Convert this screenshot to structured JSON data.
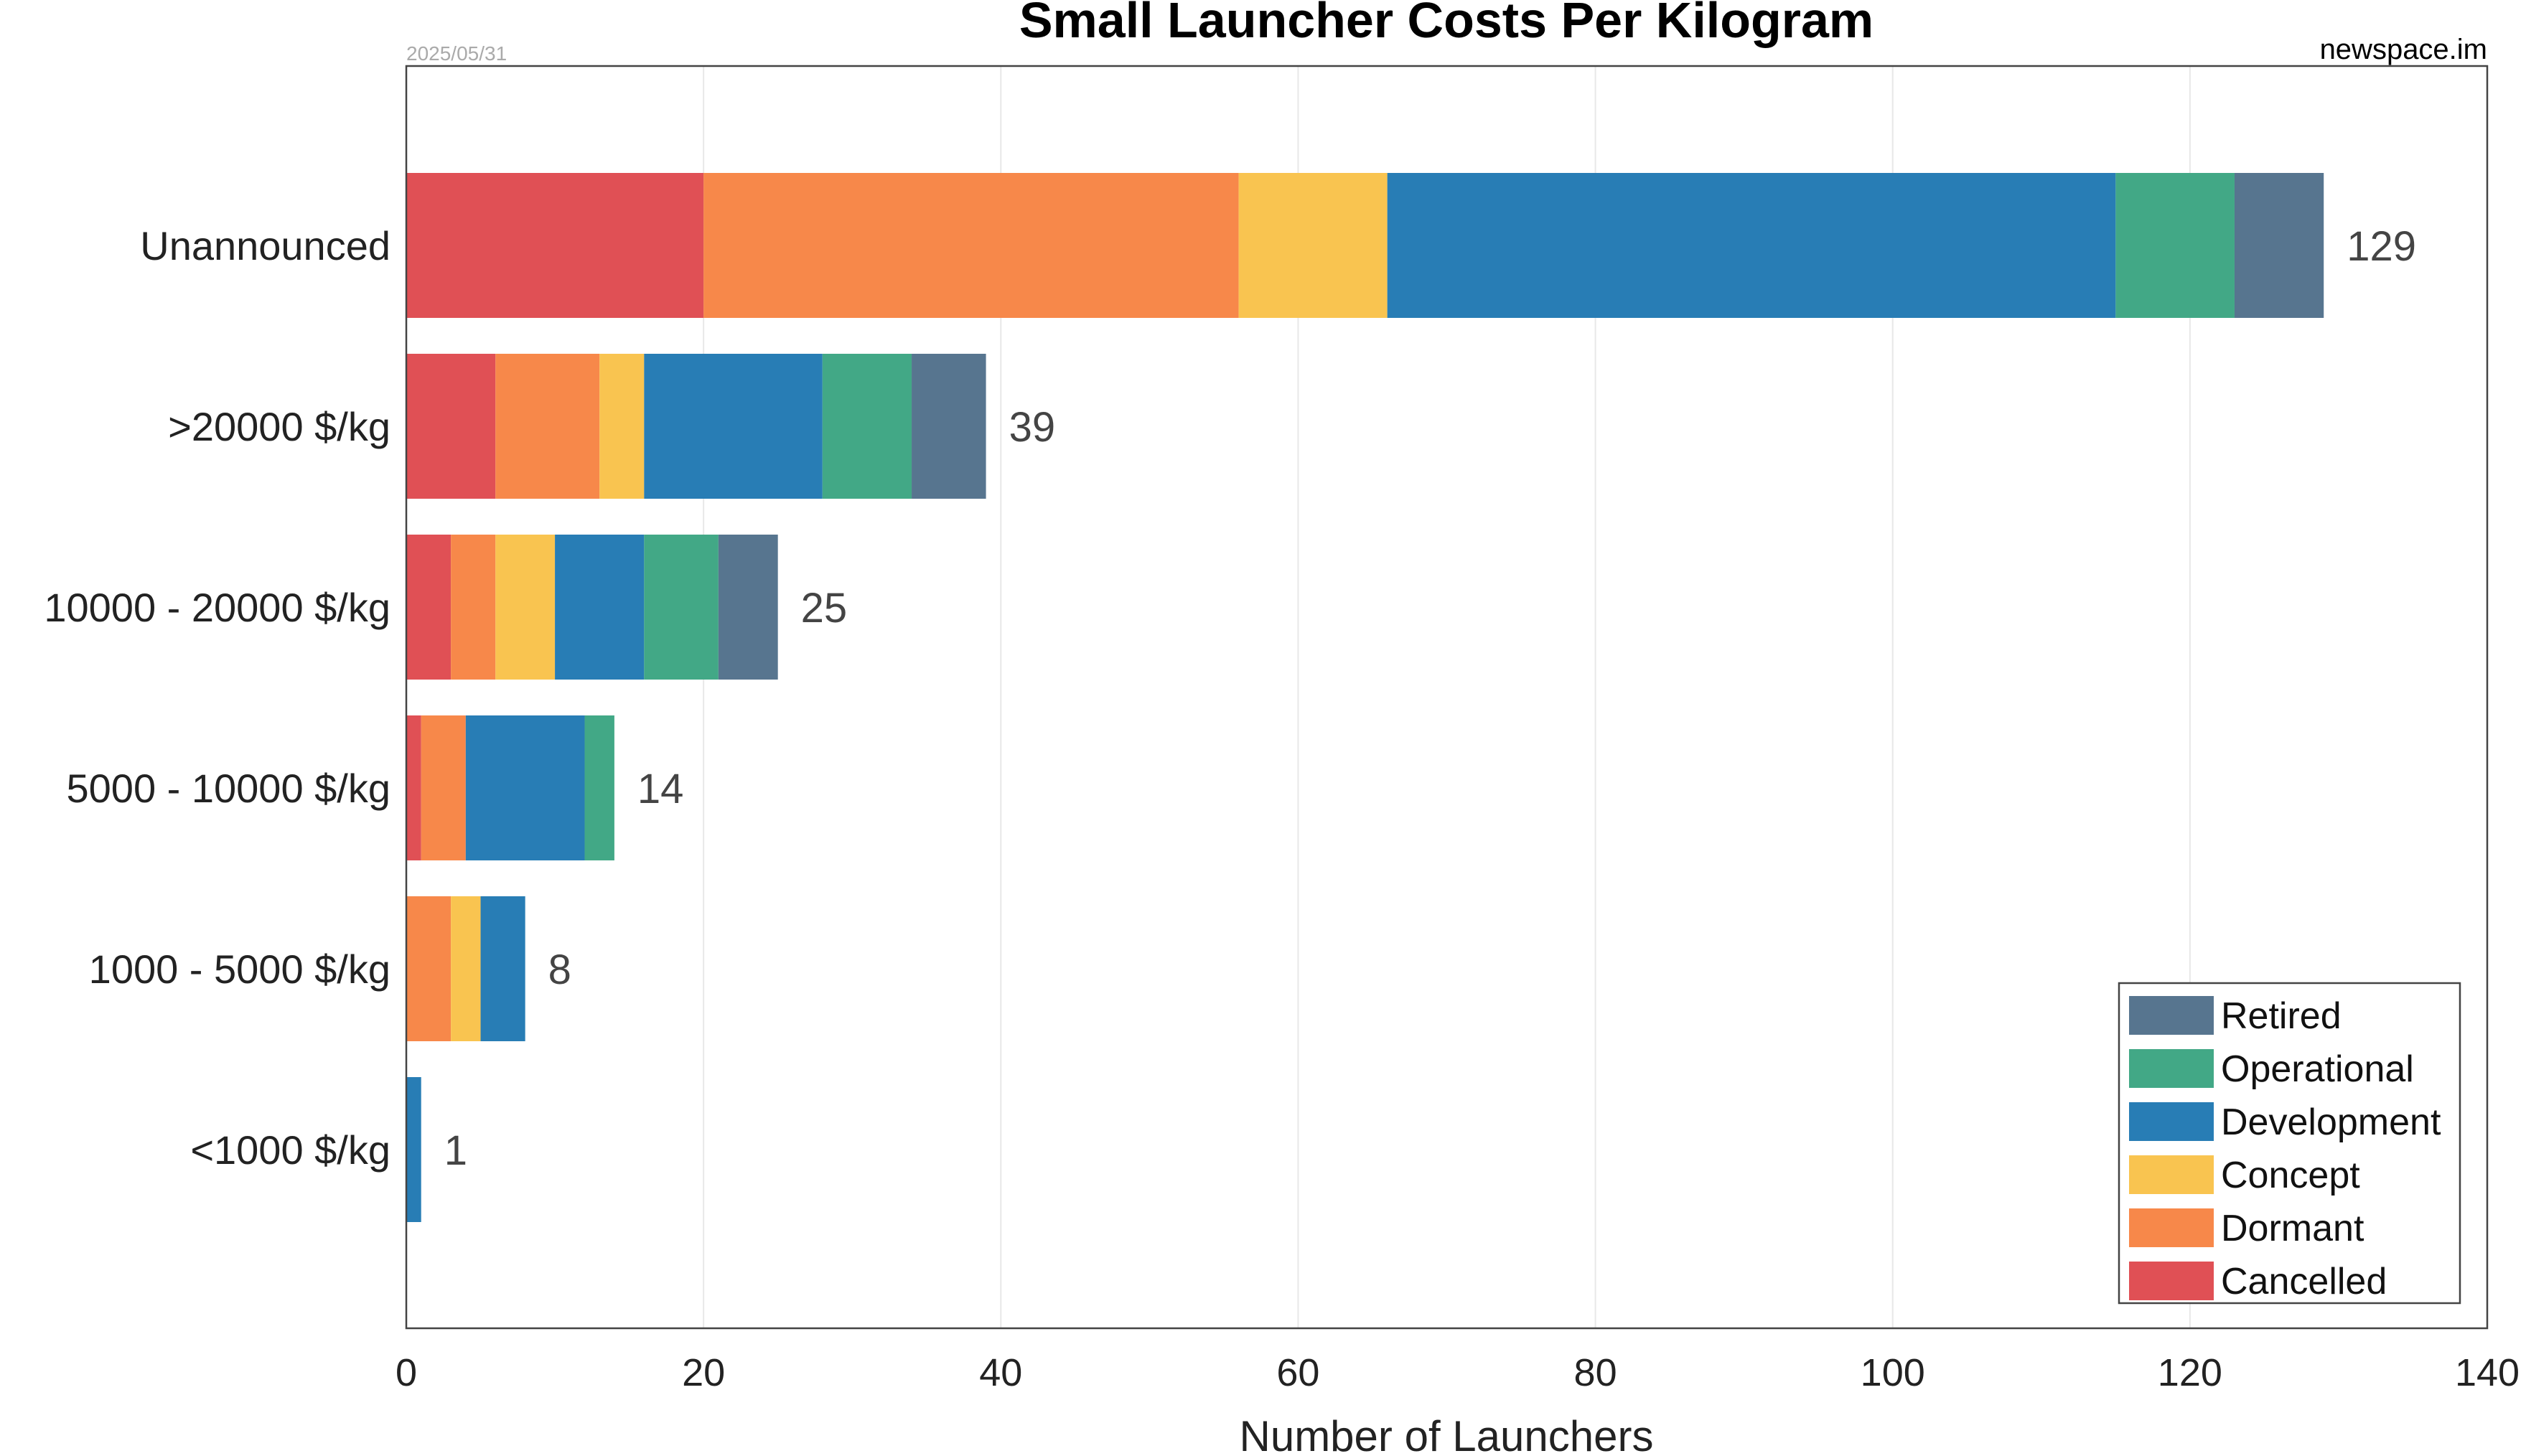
{
  "chart_data": {
    "type": "bar",
    "orientation": "horizontal",
    "stacked": true,
    "title": "Small Launcher Costs Per Kilogram",
    "date": "2025/05/31",
    "source": "newspace.im",
    "xlabel": "Number of Launchers",
    "ylabel": "",
    "xlim": [
      0,
      140
    ],
    "xticks": [
      0,
      20,
      40,
      60,
      80,
      100,
      120,
      140
    ],
    "grid": "vertical",
    "legend_position": "bottom-right",
    "categories": [
      "Unannounced",
      ">20000 $/kg",
      "10000 - 20000 $/kg",
      "5000 - 10000 $/kg",
      "1000 - 5000 $/kg",
      "<1000 $/kg"
    ],
    "series": [
      {
        "name": "Cancelled",
        "color": "#e05055",
        "values": [
          20,
          6,
          3,
          1,
          0,
          0
        ]
      },
      {
        "name": "Dormant",
        "color": "#f7884a",
        "values": [
          36,
          7,
          3,
          3,
          3,
          0
        ]
      },
      {
        "name": "Concept",
        "color": "#f9c450",
        "values": [
          10,
          3,
          4,
          0,
          2,
          0
        ]
      },
      {
        "name": "Development",
        "color": "#287db5",
        "values": [
          49,
          12,
          6,
          8,
          3,
          1
        ]
      },
      {
        "name": "Operational",
        "color": "#42a886",
        "values": [
          8,
          6,
          5,
          2,
          0,
          0
        ]
      },
      {
        "name": "Retired",
        "color": "#57758f",
        "values": [
          6,
          5,
          4,
          0,
          0,
          0
        ]
      }
    ],
    "totals": [
      "129",
      "39",
      "25",
      "14",
      "8",
      "1"
    ],
    "legend_order": [
      "Retired",
      "Operational",
      "Development",
      "Concept",
      "Dormant",
      "Cancelled"
    ]
  }
}
